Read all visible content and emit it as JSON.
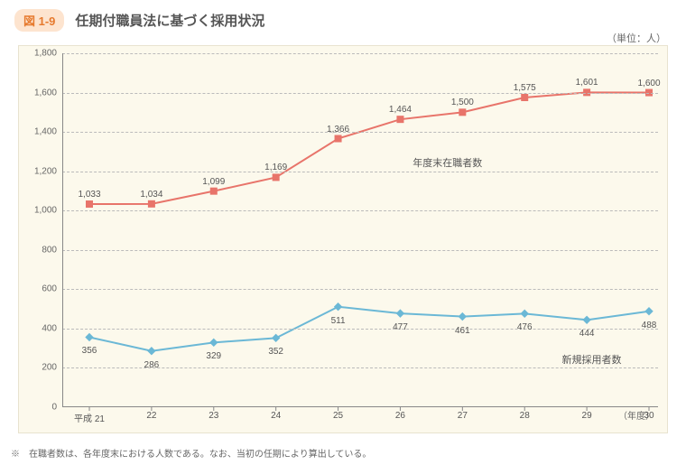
{
  "figure_badge": "図 1-9",
  "title": "任期付職員法に基づく採用状況",
  "unit_label": "（単位：人）",
  "x_axis_title": "（年度）",
  "footnote": "※　在職者数は、各年度末における人数である。なお、当初の任期により算出している。",
  "chart": {
    "type": "line",
    "background_color": "#fcf9ec",
    "grid_color": "#bbbbbb",
    "ylim": [
      0,
      1800
    ],
    "ytick_step": 200,
    "yticks": [
      0,
      200,
      400,
      600,
      800,
      1000,
      1200,
      1400,
      1600,
      1800
    ],
    "categories": [
      "平成 21",
      "22",
      "23",
      "24",
      "25",
      "26",
      "27",
      "28",
      "29",
      "30"
    ],
    "series": [
      {
        "name": "年度末在職者数",
        "color": "#e8746a",
        "marker": "square",
        "marker_size": 7,
        "line_width": 2,
        "label_pos": {
          "x_index": 5.2,
          "y_value": 1280
        },
        "values": [
          1033,
          1034,
          1099,
          1169,
          1366,
          1464,
          1500,
          1575,
          1601,
          1600
        ],
        "labels": [
          "1,033",
          "1,034",
          "1,099",
          "1,169",
          "1,366",
          "1,464",
          "1,500",
          "1,575",
          "1,601",
          "1,600"
        ]
      },
      {
        "name": "新規採用者数",
        "color": "#6bb8d6",
        "marker": "diamond",
        "marker_size": 8,
        "line_width": 2,
        "label_pos": {
          "x_index": 7.6,
          "y_value": 280
        },
        "values": [
          356,
          286,
          329,
          352,
          511,
          477,
          461,
          476,
          444,
          488
        ],
        "labels": [
          "356",
          "286",
          "329",
          "352",
          "511",
          "477",
          "461",
          "476",
          "444",
          "488"
        ]
      }
    ]
  }
}
